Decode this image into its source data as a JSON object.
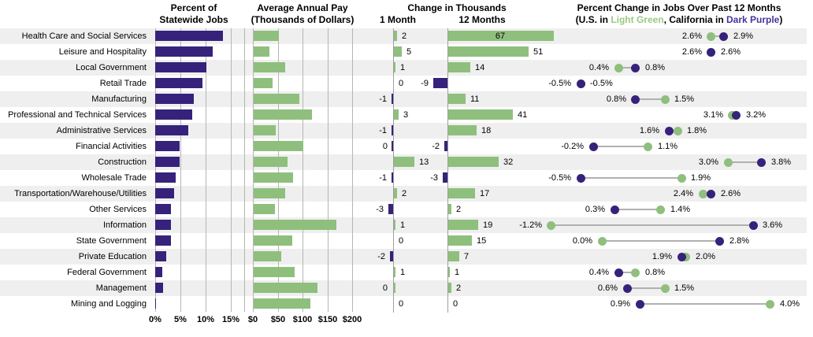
{
  "page": {
    "p1_title1": "Percent of",
    "p1_title2": "Statewide Jobs",
    "p2_title1": "Average Annual Pay",
    "p2_title2": "(Thousands of Dollars)",
    "p3_title": "Change in Thousands",
    "p3_col1": "1 Month",
    "p3_col2": "12 Months",
    "p4_title": "Percent Change in Jobs Over Past 12 Months",
    "p4_sub": {
      "pre": "(U.S. in ",
      "green": "Light Green",
      "mid": ", California in ",
      "purple": "Dark Purple",
      "post": ")"
    }
  },
  "colors": {
    "green": "#8FBF7D",
    "purple": "#36227B",
    "legend_green": "#9AC884",
    "legend_purple": "#45339B",
    "stripe": "#EFEFEF",
    "grid": "#B5B5B5",
    "axis": "#9E9E9E",
    "connector": "#B0B0B0",
    "text": "#000000"
  },
  "axes": {
    "p1_ticks": [
      "0%",
      "5%",
      "10%",
      "15%"
    ],
    "p1_tick_values": [
      0,
      5,
      10,
      15
    ],
    "p2_ticks": [
      "$0",
      "$50",
      "$100",
      "$150",
      "$200"
    ],
    "p2_tick_values": [
      0,
      50,
      100,
      150,
      200
    ]
  },
  "chart_data": {
    "type": "table",
    "description": "Four linked horizontal charts by industry: share of statewide jobs (bar), average annual pay (bar), 1-month and 12-month job change in thousands (bars with value labels), and 12-month percent change in jobs as a dumbbell dot plot (U.S. green vs California purple).",
    "categories": [
      "Health Care and Social Services",
      "Leisure and Hospitality",
      "Local Government",
      "Retail Trade",
      "Manufacturing",
      "Professional and Technical Services",
      "Administrative Services",
      "Financial Activities",
      "Construction",
      "Wholesale Trade",
      "Transportation/Warehouse/Utilities",
      "Other Services",
      "Information",
      "State Government",
      "Private Education",
      "Federal Government",
      "Management",
      "Mining and Logging"
    ],
    "panels": [
      {
        "type": "bar",
        "title": "Percent of Statewide Jobs",
        "unit": "percent",
        "xlim": [
          0,
          17.5
        ],
        "tick_labels": [
          "0%",
          "5%",
          "10%",
          "15%"
        ],
        "values": [
          13.4,
          11.4,
          10.2,
          9.4,
          7.7,
          7.4,
          6.5,
          4.8,
          4.8,
          4.0,
          3.8,
          3.2,
          3.1,
          3.1,
          2.2,
          1.4,
          1.5,
          0.1
        ]
      },
      {
        "type": "bar",
        "title": "Average Annual Pay (Thousands of Dollars)",
        "unit": "thousand dollars",
        "xlim": [
          0,
          200
        ],
        "tick_labels": [
          "$0",
          "$50",
          "$100",
          "$150",
          "$200"
        ],
        "values": [
          51,
          31,
          64,
          38,
          92,
          117,
          45,
          99,
          68,
          79,
          63,
          43,
          166,
          77,
          55,
          82,
          128,
          114
        ]
      },
      {
        "type": "bar",
        "title": "Change in Thousands",
        "series": [
          {
            "name": "1 Month",
            "values": [
              2,
              5,
              1,
              0,
              -1,
              3,
              -1,
              0,
              13,
              -1,
              2,
              -3,
              1,
              0,
              -2,
              1,
              0,
              0
            ]
          },
          {
            "name": "12 Months",
            "values": [
              67,
              51,
              14,
              -9,
              11,
              41,
              18,
              -2,
              32,
              -3,
              17,
              2,
              19,
              15,
              7,
              1,
              2,
              0
            ]
          }
        ]
      },
      {
        "type": "dumbbell",
        "title": "Percent Change in Jobs Over Past 12 Months",
        "unit": "percent",
        "series": [
          {
            "name": "U.S.",
            "color_key": "green",
            "values": [
              2.6,
              2.6,
              0.4,
              -0.5,
              1.5,
              3.1,
              1.8,
              1.1,
              3.0,
              1.9,
              2.4,
              1.4,
              -1.2,
              0.0,
              2.0,
              0.8,
              1.5,
              4.0
            ]
          },
          {
            "name": "California",
            "color_key": "purple",
            "values": [
              2.9,
              2.6,
              0.8,
              -0.5,
              0.8,
              3.2,
              1.6,
              -0.2,
              3.8,
              -0.5,
              2.6,
              0.3,
              3.6,
              2.8,
              1.9,
              0.4,
              0.6,
              0.9
            ]
          }
        ]
      }
    ]
  },
  "render_hints": {
    "m1_label_side": [
      "r",
      "r",
      "r",
      "r",
      "l",
      "r",
      "l",
      "l",
      "r",
      "l",
      "r",
      "l",
      "r",
      "r",
      "l",
      "r",
      "l",
      "r"
    ],
    "m12_label_side": [
      "in",
      "r",
      "r",
      "l",
      "r",
      "r",
      "r",
      "l",
      "r",
      "l",
      "r",
      "r",
      "r",
      "r",
      "r",
      "r",
      "r",
      "r"
    ],
    "m1_zero_tick": [
      null,
      null,
      null,
      null,
      null,
      null,
      null,
      "purple",
      null,
      null,
      null,
      null,
      null,
      null,
      null,
      null,
      "green",
      null
    ]
  }
}
